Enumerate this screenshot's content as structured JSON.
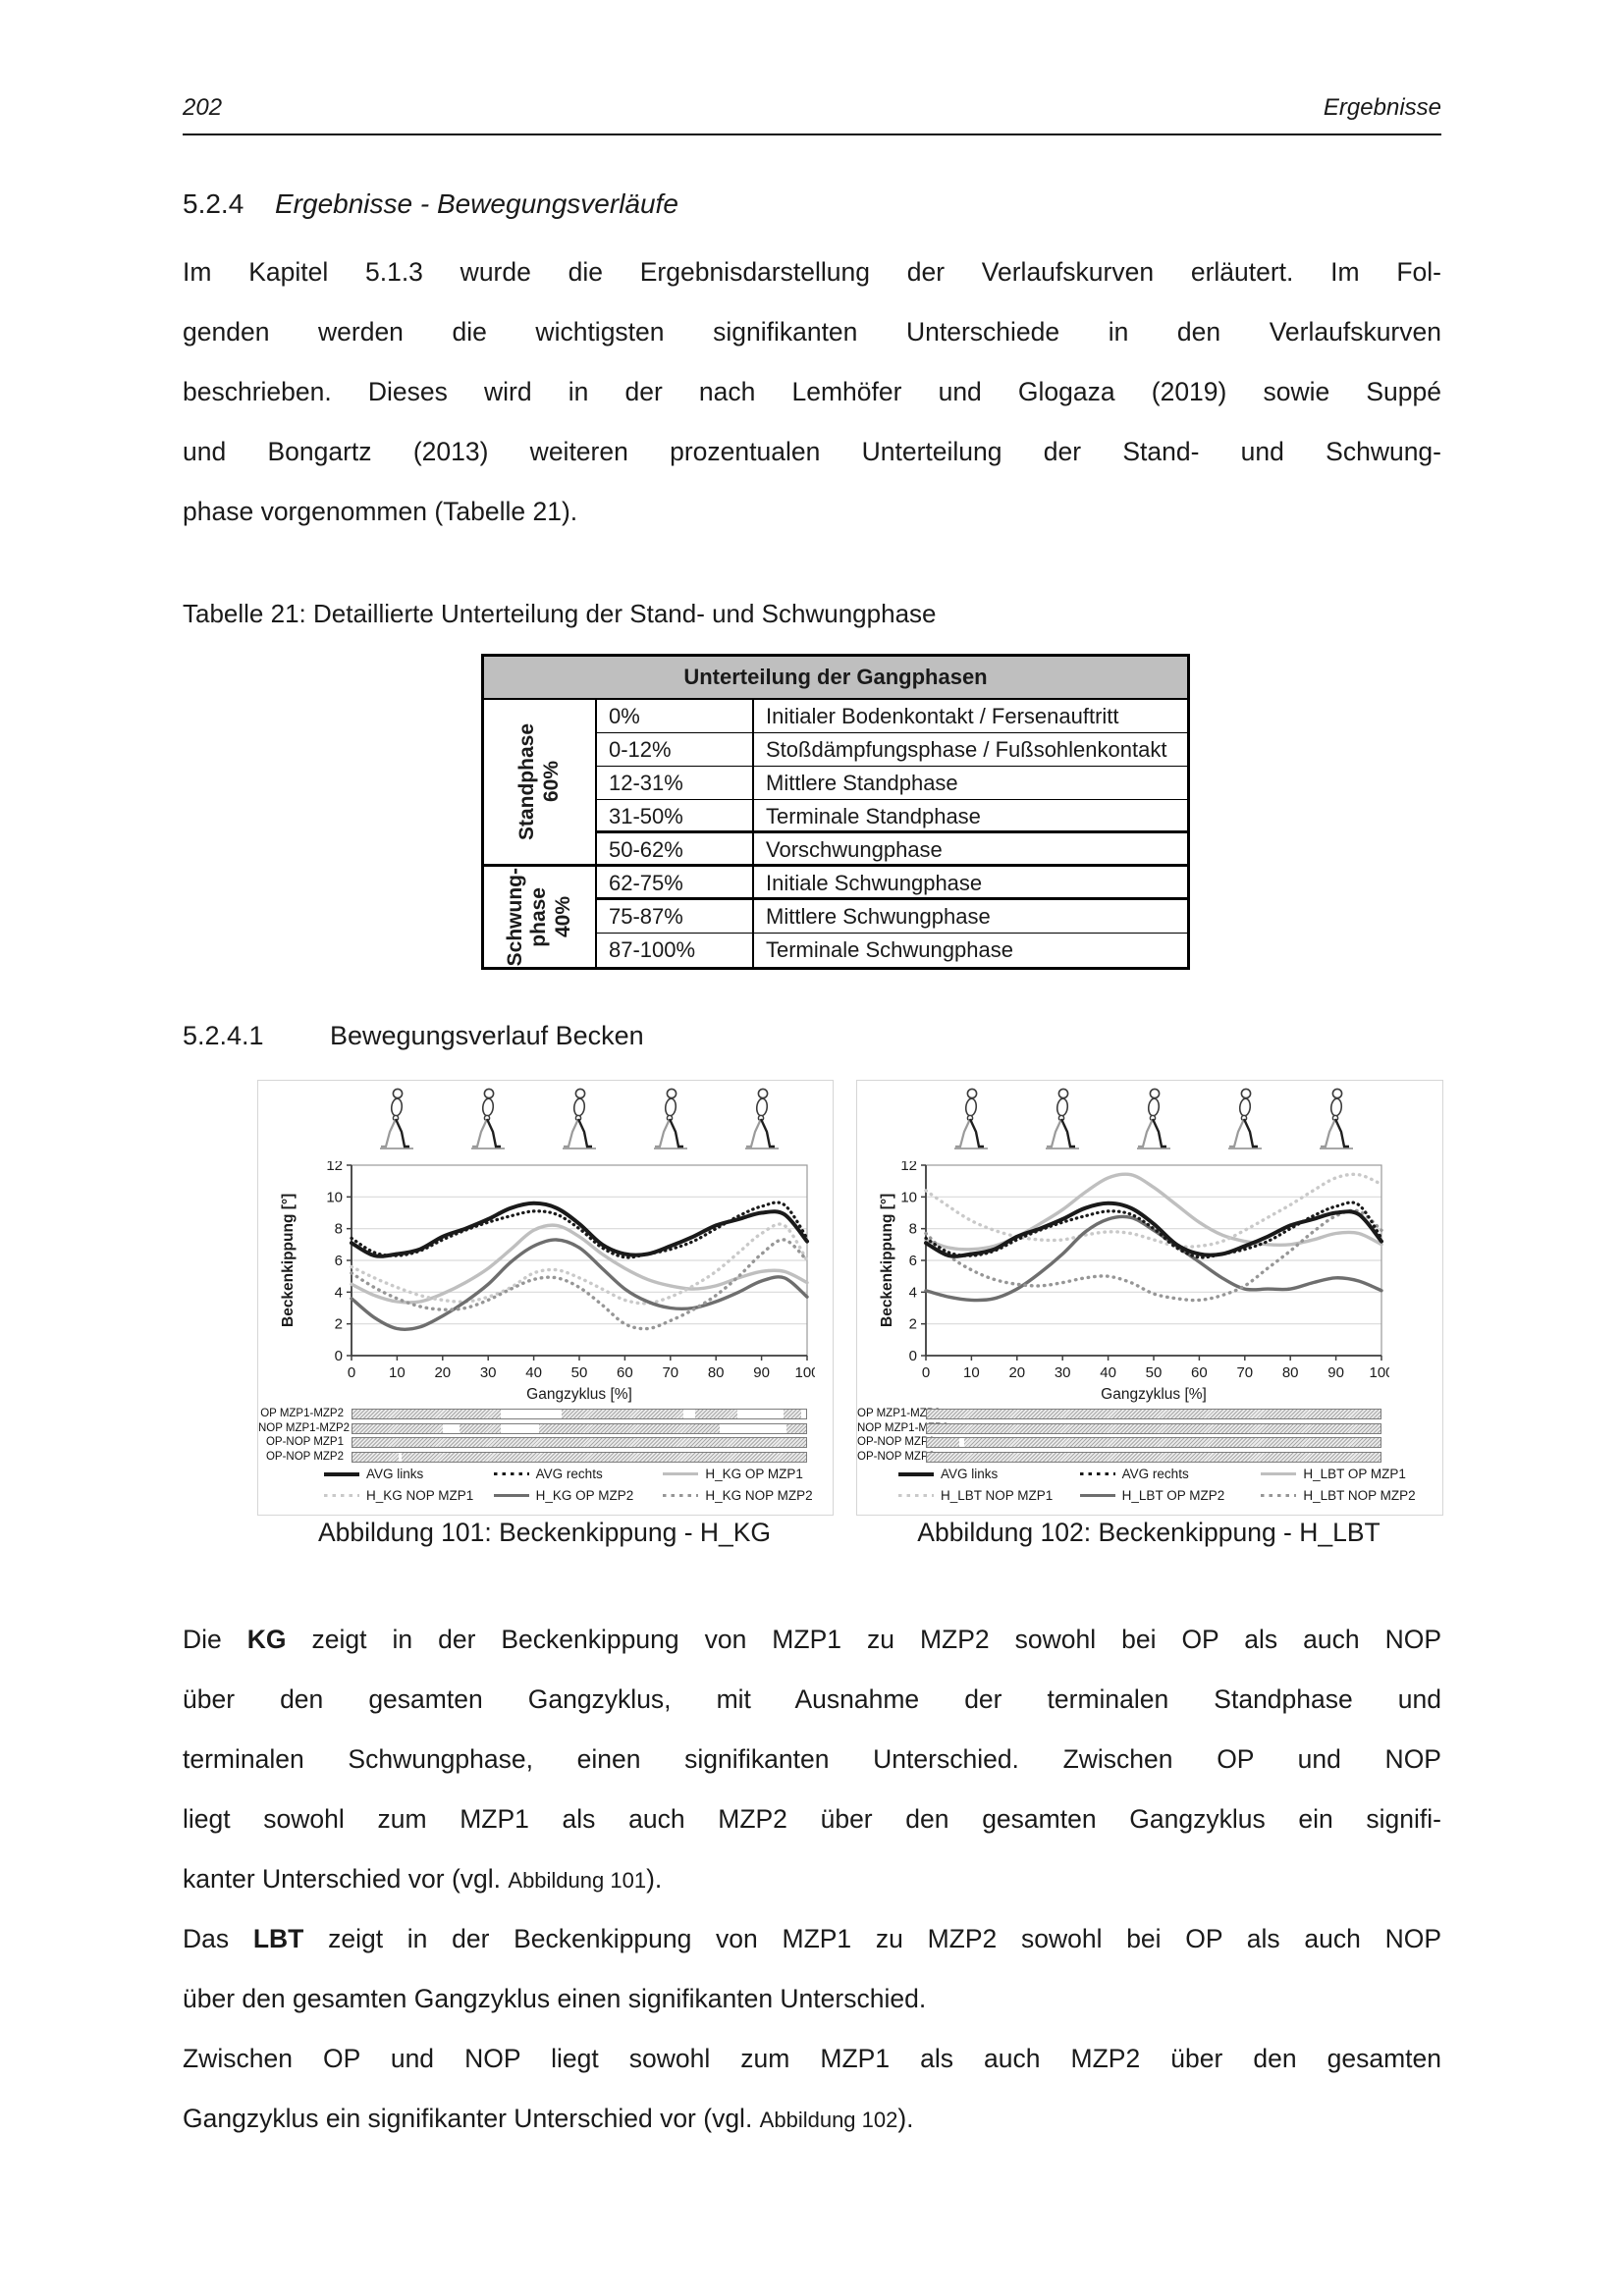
{
  "page_header": {
    "page_number": "202",
    "running_title": "Ergebnisse"
  },
  "heading_524": {
    "number": "5.2.4",
    "title": "Ergebnisse - Bewegungsverläufe"
  },
  "paragraph_top": {
    "lines": [
      {
        "j": true,
        "segs": [
          {
            "t": "Im Kapitel 5.1.3 wurde die Ergebnisdarstellung der Verlaufskurven erläutert. Im Fol-"
          }
        ]
      },
      {
        "j": true,
        "segs": [
          {
            "t": "genden werden die wichtigsten signifikanten Unterschiede in den Verlaufskurven"
          }
        ]
      },
      {
        "j": true,
        "segs": [
          {
            "t": "beschrieben. Dieses wird in der nach Lemhöfer und Glogaza (2019) sowie Suppé"
          }
        ]
      },
      {
        "j": true,
        "segs": [
          {
            "t": "und Bongartz (2013) weiteren prozentualen Unterteilung der Stand- und Schwung-"
          }
        ]
      },
      {
        "j": false,
        "segs": [
          {
            "t": "phase vorgenommen (Tabelle 21)."
          }
        ]
      }
    ]
  },
  "table_caption": "Tabelle 21: Detaillierte Unterteilung der Stand- und Schwungphase",
  "gait_table": {
    "title": "Unterteilung der Gangphasen",
    "groups": [
      {
        "label_lines": [
          "Standphase",
          "60%"
        ],
        "rows": [
          {
            "pct": "0%",
            "phase": "Initialer Bodenkontakt / Fersenauftritt"
          },
          {
            "pct": "0-12%",
            "phase": "Stoßdämpfungsphase / Fußsohlenkontakt"
          },
          {
            "pct": "12-31%",
            "phase": "Mittlere Standphase"
          },
          {
            "pct": "31-50%",
            "phase": "Terminale Standphase"
          },
          {
            "pct": "50-62%",
            "phase": "Vorschwungphase"
          }
        ]
      },
      {
        "label_lines": [
          "Schwung-",
          "phase",
          "40%"
        ],
        "rows": [
          {
            "pct": "62-75%",
            "phase": "Initiale Schwungphase"
          },
          {
            "pct": "75-87%",
            "phase": "Mittlere Schwungphase"
          },
          {
            "pct": "87-100%",
            "phase": "Terminale Schwungphase"
          }
        ]
      }
    ]
  },
  "heading_5241": {
    "number": "5.2.4.1",
    "title": "Bewegungsverlauf Becken"
  },
  "chart_data": [
    {
      "type": "line",
      "caption": "Abbildung 101: Beckenkippung - H_KG",
      "xlabel": "Gangzyklus [%]",
      "ylabel": "Beckenkippung [°]",
      "xlim": [
        0,
        100
      ],
      "ylim": [
        0,
        12
      ],
      "xticks": [
        0,
        10,
        20,
        30,
        40,
        50,
        60,
        70,
        80,
        90,
        100
      ],
      "yticks": [
        0,
        2,
        4,
        6,
        8,
        10,
        12
      ],
      "grid": true,
      "x": [
        0,
        5,
        10,
        15,
        20,
        25,
        30,
        35,
        40,
        45,
        50,
        55,
        60,
        65,
        70,
        75,
        80,
        85,
        90,
        95,
        100
      ],
      "series": [
        {
          "name": "AVG links",
          "style": "solid",
          "color": "#1a1a1a",
          "width": 4,
          "values": [
            7.1,
            6.3,
            6.4,
            6.7,
            7.5,
            8.0,
            8.6,
            9.3,
            9.6,
            9.3,
            8.3,
            7.0,
            6.4,
            6.4,
            6.9,
            7.5,
            8.2,
            8.6,
            9.0,
            8.9,
            7.2
          ]
        },
        {
          "name": "AVG rechts",
          "style": "dotted",
          "color": "#1a1a1a",
          "width": 3.2,
          "values": [
            7.4,
            6.5,
            6.3,
            6.6,
            7.3,
            7.9,
            8.4,
            8.8,
            9.1,
            8.9,
            8.0,
            6.8,
            6.2,
            6.4,
            6.7,
            7.2,
            8.0,
            8.8,
            9.4,
            9.5,
            7.4
          ]
        },
        {
          "name": "H_KG OP MZP1",
          "style": "solid",
          "color": "#bfbfbf",
          "width": 3.4,
          "values": [
            4.5,
            3.8,
            3.4,
            3.4,
            3.9,
            4.6,
            5.5,
            6.7,
            7.9,
            8.2,
            7.5,
            6.4,
            5.5,
            4.8,
            4.4,
            4.2,
            4.4,
            4.9,
            5.3,
            5.3,
            4.6
          ]
        },
        {
          "name": "H_KG NOP MZP1",
          "style": "dotted",
          "color": "#c9c9c9",
          "width": 3.4,
          "values": [
            5.6,
            4.9,
            4.3,
            3.8,
            3.5,
            3.4,
            3.7,
            4.3,
            5.2,
            5.4,
            4.9,
            4.2,
            3.5,
            3.3,
            3.7,
            4.4,
            5.3,
            6.5,
            7.7,
            8.2,
            6.0
          ]
        },
        {
          "name": "H_KG OP MZP2",
          "style": "solid",
          "color": "#6e6e6e",
          "width": 3.4,
          "values": [
            3.6,
            2.4,
            1.7,
            1.8,
            2.5,
            3.4,
            4.5,
            5.9,
            6.9,
            7.3,
            6.8,
            5.5,
            4.2,
            3.4,
            3.0,
            3.0,
            3.4,
            4.0,
            4.7,
            4.9,
            3.7
          ]
        },
        {
          "name": "H_KG NOP MZP2",
          "style": "dotted",
          "color": "#969696",
          "width": 3.4,
          "values": [
            5.2,
            4.3,
            3.6,
            3.1,
            2.9,
            3.0,
            3.5,
            4.2,
            4.8,
            4.9,
            4.3,
            3.2,
            2.0,
            1.7,
            2.2,
            2.9,
            3.8,
            5.0,
            6.4,
            7.3,
            6.0
          ]
        }
      ],
      "significance_rows": [
        {
          "label": "OP MZP1-MZP2",
          "gaps": [
            [
              32.6,
              46.2
            ],
            [
              73.0,
              75.6
            ],
            [
              84.8,
              95.0
            ],
            [
              99.0,
              100.0
            ]
          ]
        },
        {
          "label": "NOP MZP1-MZP2",
          "gaps": [
            [
              20.0,
              23.7
            ],
            [
              32.6,
              41.2
            ],
            [
              81.0,
              95.7
            ]
          ]
        },
        {
          "label": "OP-NOP MZP1",
          "gaps": []
        },
        {
          "label": "OP-NOP MZP2",
          "gaps": [
            [
              10.1,
              10.9
            ]
          ]
        }
      ]
    },
    {
      "type": "line",
      "caption": "Abbildung 102: Beckenkippung - H_LBT",
      "xlabel": "Gangzyklus [%]",
      "ylabel": "Beckenkippung [°]",
      "xlim": [
        0,
        100
      ],
      "ylim": [
        0,
        12
      ],
      "xticks": [
        0,
        10,
        20,
        30,
        40,
        50,
        60,
        70,
        80,
        90,
        100
      ],
      "yticks": [
        0,
        2,
        4,
        6,
        8,
        10,
        12
      ],
      "grid": true,
      "x": [
        0,
        5,
        10,
        15,
        20,
        25,
        30,
        35,
        40,
        45,
        50,
        55,
        60,
        65,
        70,
        75,
        80,
        85,
        90,
        95,
        100
      ],
      "series": [
        {
          "name": "AVG links",
          "style": "solid",
          "color": "#1a1a1a",
          "width": 4,
          "values": [
            7.1,
            6.3,
            6.4,
            6.7,
            7.5,
            8.0,
            8.6,
            9.3,
            9.6,
            9.3,
            8.3,
            7.0,
            6.4,
            6.4,
            6.9,
            7.5,
            8.2,
            8.6,
            9.0,
            8.9,
            7.2
          ]
        },
        {
          "name": "AVG rechts",
          "style": "dotted",
          "color": "#1a1a1a",
          "width": 3.2,
          "values": [
            7.4,
            6.5,
            6.3,
            6.6,
            7.3,
            7.9,
            8.4,
            8.8,
            9.1,
            8.9,
            8.0,
            6.8,
            6.2,
            6.4,
            6.7,
            7.2,
            8.0,
            8.8,
            9.4,
            9.5,
            7.4
          ]
        },
        {
          "name": "H_LBT OP MZP1",
          "style": "solid",
          "color": "#bfbfbf",
          "width": 3.4,
          "values": [
            7.3,
            6.8,
            6.7,
            6.9,
            7.5,
            8.3,
            9.2,
            10.3,
            11.2,
            11.4,
            10.6,
            9.5,
            8.4,
            7.6,
            7.2,
            7.0,
            7.0,
            7.3,
            7.7,
            7.7,
            7.0
          ]
        },
        {
          "name": "H_LBT NOP MZP1",
          "style": "dotted",
          "color": "#c9c9c9",
          "width": 3.4,
          "values": [
            10.4,
            9.4,
            8.5,
            7.9,
            7.5,
            7.3,
            7.3,
            7.6,
            7.8,
            7.7,
            7.3,
            6.9,
            6.9,
            7.2,
            7.9,
            8.7,
            9.5,
            10.4,
            11.2,
            11.4,
            10.8
          ]
        },
        {
          "name": "H_LBT OP MZP2",
          "style": "solid",
          "color": "#6e6e6e",
          "width": 3.4,
          "values": [
            4.1,
            3.7,
            3.5,
            3.6,
            4.2,
            5.2,
            6.4,
            7.8,
            8.6,
            8.7,
            7.9,
            6.9,
            5.9,
            4.9,
            4.2,
            4.2,
            4.2,
            4.6,
            4.9,
            4.7,
            4.1
          ]
        },
        {
          "name": "H_LBT NOP MZP2",
          "style": "dotted",
          "color": "#969696",
          "width": 3.4,
          "values": [
            7.7,
            6.3,
            5.4,
            4.8,
            4.5,
            4.4,
            4.6,
            4.9,
            5.0,
            4.6,
            3.9,
            3.6,
            3.5,
            3.8,
            4.4,
            5.5,
            6.6,
            7.8,
            8.8,
            9.1,
            7.9
          ]
        }
      ],
      "significance_rows": [
        {
          "label": "OP MZP1-MZP2",
          "gaps": []
        },
        {
          "label": "NOP MZP1-MZP2",
          "gaps": []
        },
        {
          "label": "OP-NOP MZP1",
          "gaps": [
            [
              7.1,
              8.2
            ]
          ]
        },
        {
          "label": "OP-NOP MZP2",
          "gaps": []
        }
      ]
    }
  ],
  "paragraph_bottom": {
    "lines": [
      {
        "j": true,
        "segs": [
          {
            "t": "Die "
          },
          {
            "t": "KG",
            "b": true
          },
          {
            "t": " zeigt in der Beckenkippung von MZP1 zu MZP2 sowohl bei OP als auch NOP"
          }
        ]
      },
      {
        "j": true,
        "segs": [
          {
            "t": "über den gesamten Gangzyklus, mit Ausnahme der terminalen Standphase und"
          }
        ]
      },
      {
        "j": true,
        "segs": [
          {
            "t": "terminalen Schwungphase, einen signifikanten Unterschied. Zwischen OP und NOP"
          }
        ]
      },
      {
        "j": true,
        "segs": [
          {
            "t": "liegt sowohl zum MZP1 als auch MZP2 über den gesamten Gangzyklus ein signifi-"
          }
        ]
      },
      {
        "j": false,
        "segs": [
          {
            "t": "kanter Unterschied vor (vgl. "
          },
          {
            "t": "Abbildung 101",
            "s": true
          },
          {
            "t": ")."
          }
        ]
      },
      {
        "j": true,
        "segs": [
          {
            "t": "Das "
          },
          {
            "t": "LBT",
            "b": true
          },
          {
            "t": " zeigt in der Beckenkippung von MZP1 zu MZP2 sowohl bei OP als auch NOP"
          }
        ]
      },
      {
        "j": false,
        "segs": [
          {
            "t": "über den gesamten Gangzyklus einen signifikanten Unterschied."
          }
        ]
      },
      {
        "j": true,
        "segs": [
          {
            "t": "Zwischen OP und NOP liegt sowohl zum MZP1 als auch MZP2 über den gesamten"
          }
        ]
      },
      {
        "j": false,
        "segs": [
          {
            "t": "Gangzyklus ein signifikanter Unterschied vor (vgl. "
          },
          {
            "t": "Abbildung 102",
            "s": true
          },
          {
            "t": ")."
          }
        ]
      }
    ]
  }
}
